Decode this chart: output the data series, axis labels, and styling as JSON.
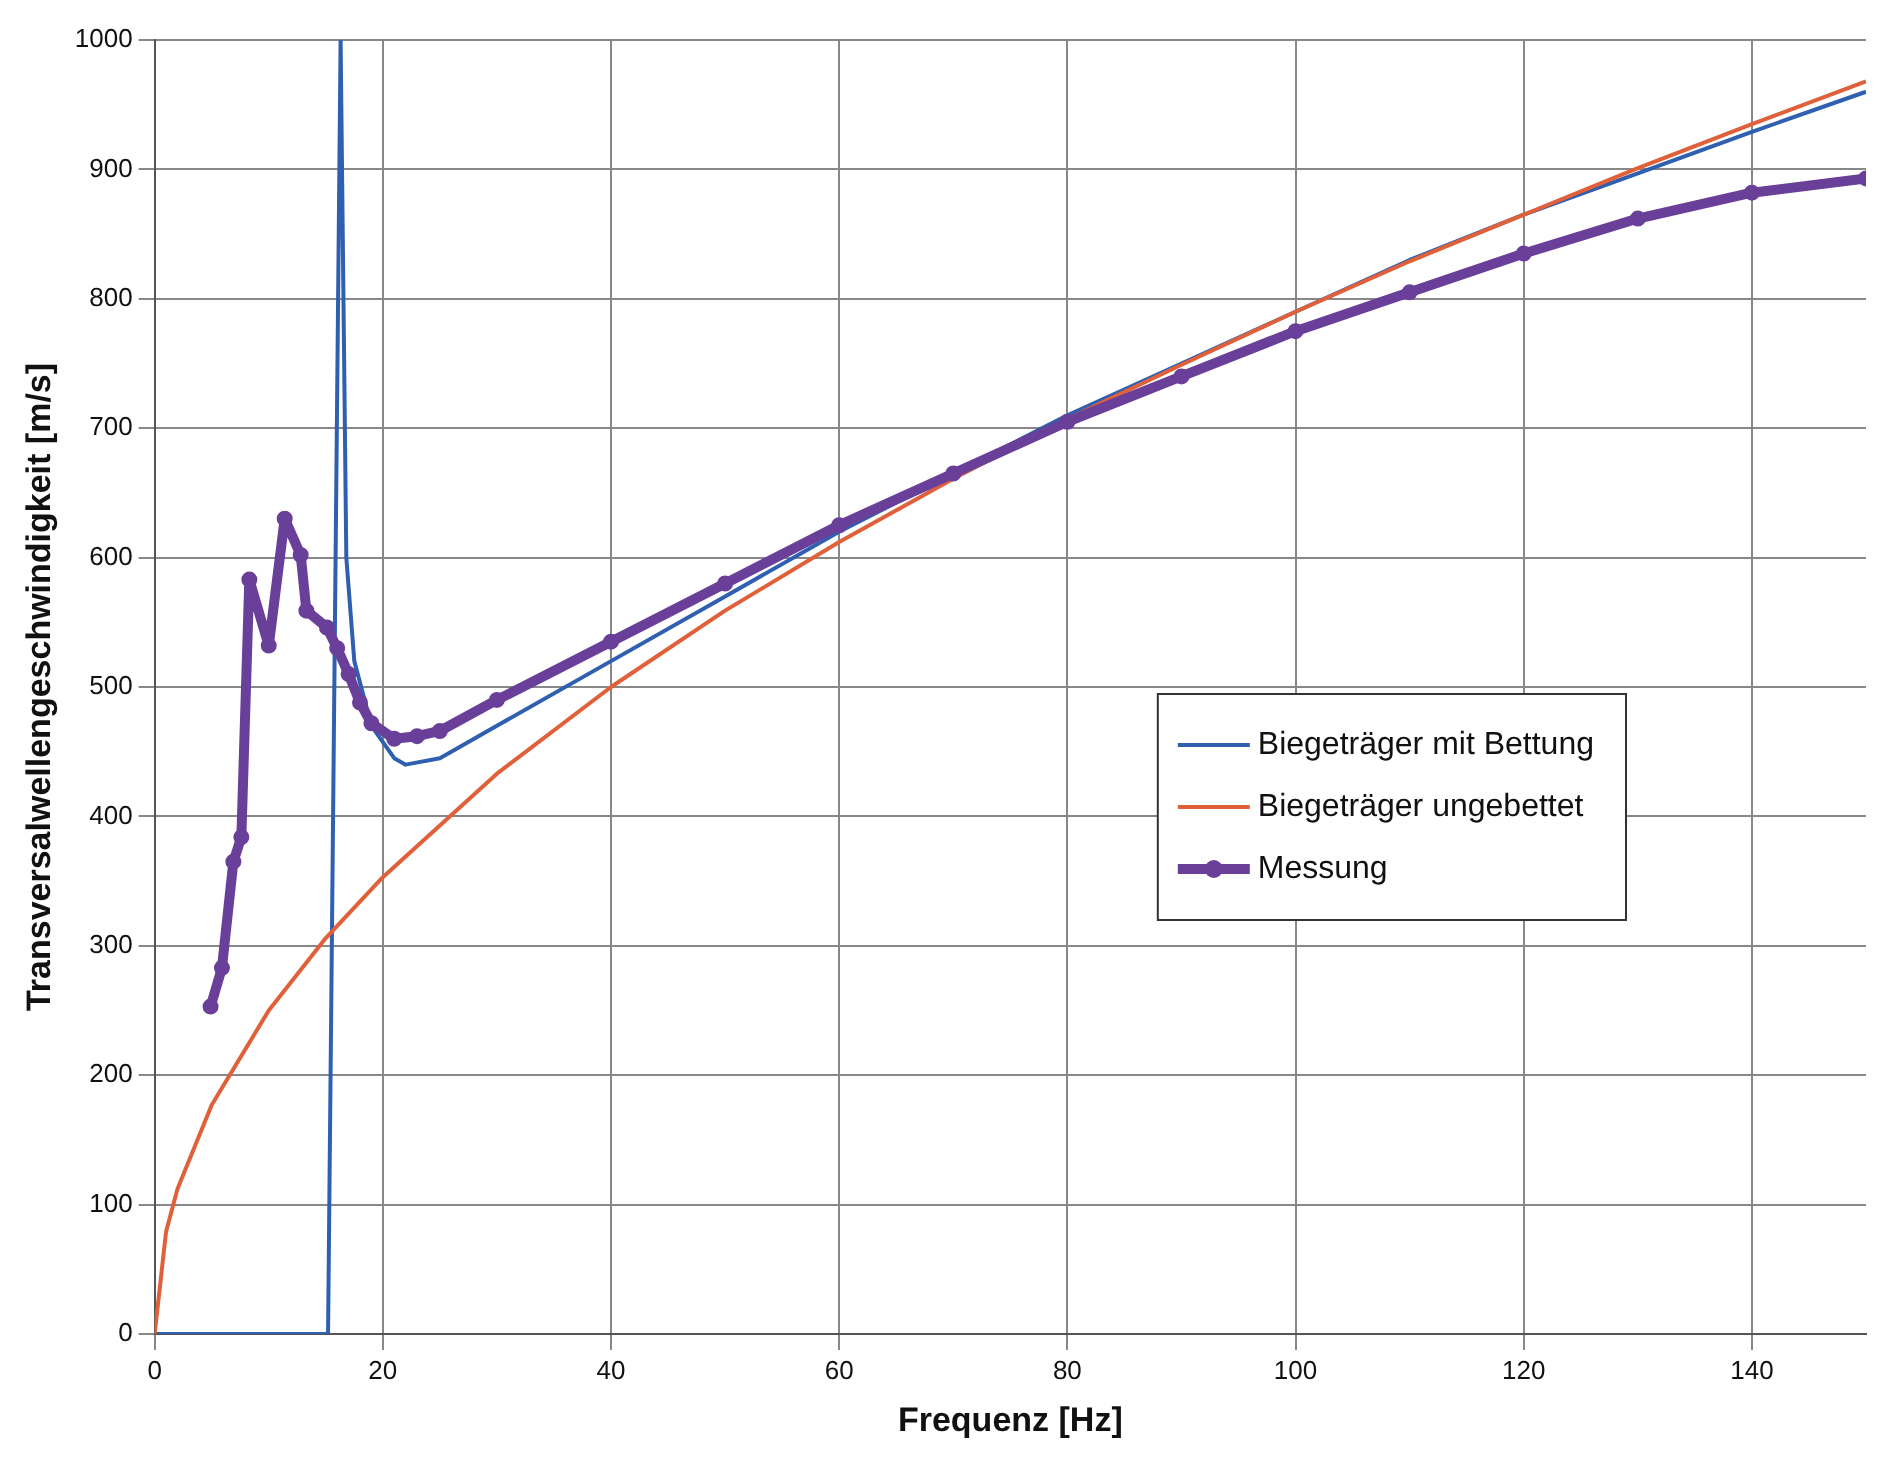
{
  "chart_data": {
    "type": "line",
    "xlabel": "Frequenz [Hz]",
    "ylabel": "Transversalwellengeschwindigkeit [m/s]",
    "xlim": [
      0,
      150
    ],
    "xticks": [
      0,
      20,
      40,
      60,
      80,
      100,
      120,
      140
    ],
    "ylim": [
      0,
      1000
    ],
    "yticks": [
      0,
      100,
      200,
      300,
      400,
      500,
      600,
      700,
      800,
      900,
      1000
    ],
    "grid": true,
    "legend": "right",
    "series": [
      {
        "name": "Biegeträger mit Bettung",
        "color": "#2f5fb0",
        "marker": "none",
        "x": [
          0,
          15.2,
          16.3,
          16.8,
          17.5,
          19,
          21,
          22,
          25,
          30,
          40,
          50,
          60,
          70,
          80,
          90,
          100,
          110,
          120,
          130,
          140,
          150
        ],
        "values": [
          0,
          0,
          1000,
          600,
          520,
          470,
          445,
          440,
          445,
          470,
          520,
          570,
          620,
          665,
          710,
          750,
          790,
          830,
          865,
          897,
          929,
          960
        ]
      },
      {
        "name": "Biegeträger ungebettet",
        "color": "#e0603a",
        "marker": "none",
        "x": [
          0,
          1,
          2,
          5,
          10,
          15,
          20,
          30,
          40,
          50,
          60,
          70,
          80,
          90,
          100,
          110,
          120,
          130,
          140,
          150
        ],
        "values": [
          0,
          79,
          112,
          177,
          250,
          306,
          353,
          433,
          500,
          559,
          612,
          661,
          707,
          749,
          790,
          829,
          865,
          901,
          935,
          968
        ]
      },
      {
        "name": "Messung",
        "color": "#6a3f9a",
        "marker": "circle",
        "x": [
          4.9,
          5.9,
          6.9,
          7.6,
          8.3,
          10,
          11.4,
          12.8,
          13.3,
          15.1,
          16,
          17,
          18,
          19,
          21,
          23,
          25,
          30,
          40,
          50,
          60,
          70,
          80,
          90,
          100,
          110,
          120,
          130,
          140,
          150
        ],
        "values": [
          253,
          283,
          365,
          384,
          583,
          532,
          630,
          602,
          559,
          546,
          530,
          510,
          488,
          472,
          460,
          462,
          466,
          490,
          535,
          580,
          625,
          665,
          705,
          740,
          775,
          805,
          835,
          862,
          882,
          893
        ]
      }
    ]
  }
}
